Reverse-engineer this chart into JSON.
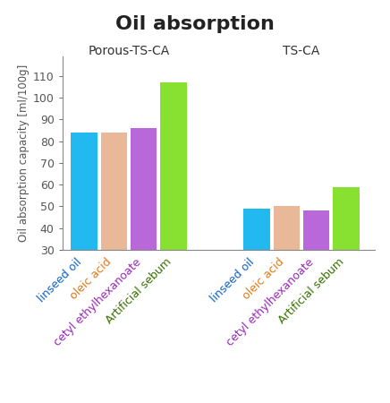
{
  "title": "Oil absorption",
  "title_bg_color": "#c8f2f8",
  "ylabel": "Oil absorption capacity [ml/100g]",
  "ylim": [
    30,
    115
  ],
  "yticks": [
    30,
    40,
    50,
    60,
    70,
    80,
    90,
    100,
    110
  ],
  "groups": [
    "Porous-TS-CA",
    "TS-CA"
  ],
  "categories": [
    "linseed oil",
    "oleic acid",
    "cetyl ethylhexanoate",
    "Artificial sebum"
  ],
  "bar_colors": [
    "#22b8f0",
    "#e8b898",
    "#b868d8",
    "#88e030"
  ],
  "tick_colors": [
    "#1060c8",
    "#e07818",
    "#9828b8",
    "#387000"
  ],
  "values_porous": [
    84,
    84,
    86,
    107
  ],
  "values_ts": [
    49,
    50,
    48,
    59
  ],
  "background_color": "#ffffff",
  "axis_font_size": 9,
  "group_label_font_size": 10,
  "tick_label_font_size": 9,
  "title_font_size": 16,
  "ylabel_font_size": 8.5
}
